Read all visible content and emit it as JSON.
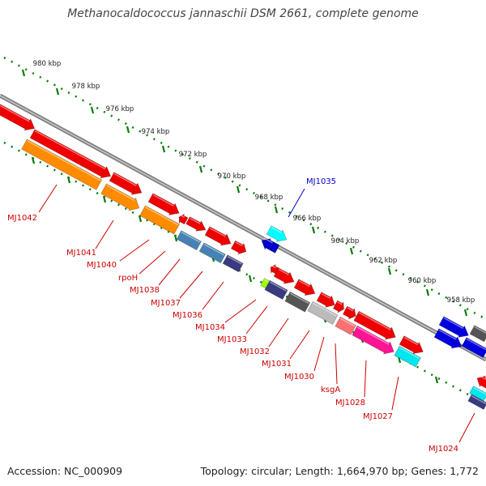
{
  "title": "Methanocaldococcus jannaschii DSM 2661, complete genome",
  "accession": "Accession: NC_000909",
  "summary": "Topology: circular; Length: 1,664,970 bp; Genes: 1,772",
  "colors": {
    "backbone": "#808080",
    "ruler_dots": "#0a7a0a",
    "label_red": "#cc0000",
    "label_blue": "#0000cc"
  },
  "ticks": [
    "980 kbp",
    "978 kbp",
    "976 kbp",
    "974 kbp",
    "972 kbp",
    "970 kbp",
    "968 kbp",
    "966 kbp",
    "964 kbp",
    "962 kbp",
    "960 kbp",
    "958 kbp"
  ],
  "gene_labels": [
    "MJ1042",
    "MJ1041",
    "MJ1040",
    "rpoH",
    "MJ1038",
    "MJ1037",
    "MJ1036",
    "MJ1034",
    "MJ1033",
    "MJ1032",
    "MJ1031",
    "MJ1030",
    "ksgA",
    "MJ1028",
    "MJ1027",
    "MJ1024",
    "MJ1035"
  ]
}
